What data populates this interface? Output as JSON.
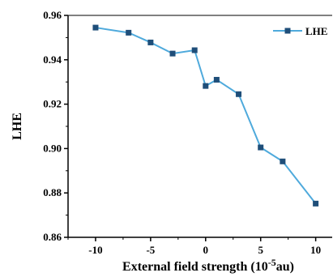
{
  "chart_data": {
    "type": "line",
    "title": "",
    "xlabel": "External field strength (10",
    "xlabel_superscript": "-5",
    "xlabel_suffix": "au)",
    "ylabel": "LHE",
    "x_ticks": [
      -10,
      -5,
      0,
      5,
      10
    ],
    "x_tick_labels": [
      "-10",
      "-5",
      "0",
      "5",
      "10"
    ],
    "y_ticks": [
      0.86,
      0.88,
      0.9,
      0.92,
      0.94,
      0.96
    ],
    "y_tick_labels": [
      "0.86",
      "0.88",
      "0.90",
      "0.92",
      "0.94",
      "0.96"
    ],
    "xlim": [
      -12.5,
      11.5
    ],
    "ylim": [
      0.86,
      0.96
    ],
    "grid": false,
    "legend_position": "top-right",
    "series": [
      {
        "name": "LHE",
        "color": "#4faadc",
        "marker_color": "#1f4e79",
        "x": [
          -10,
          -7,
          -5,
          -3,
          -1,
          0,
          1,
          3,
          5,
          7,
          10
        ],
        "y": [
          0.9545,
          0.9522,
          0.9478,
          0.9428,
          0.9443,
          0.9282,
          0.931,
          0.9245,
          0.9005,
          0.8942,
          0.8752
        ]
      }
    ]
  }
}
